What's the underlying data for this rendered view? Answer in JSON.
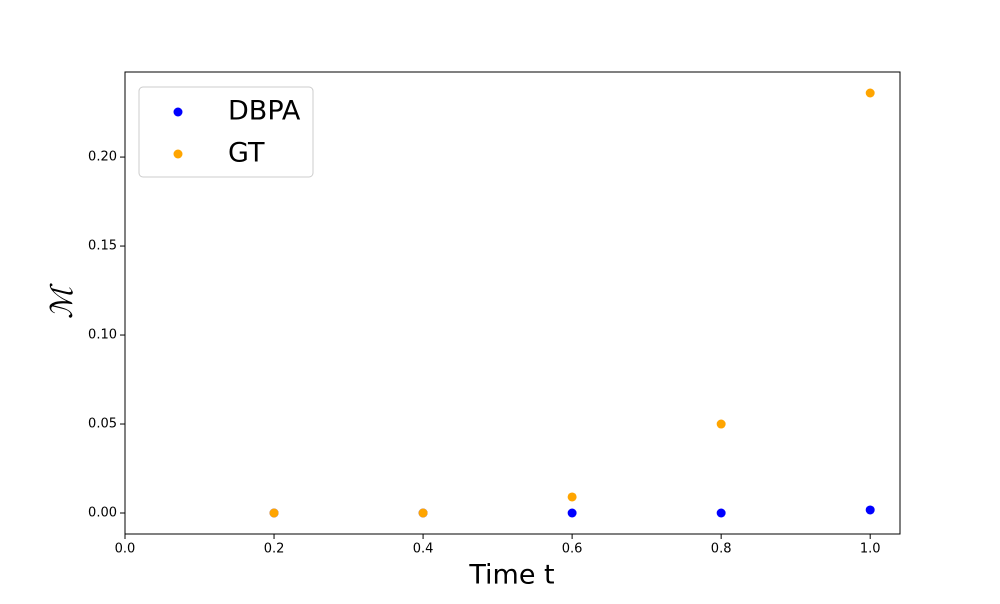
{
  "chart_data": {
    "type": "scatter",
    "x_label": "Time t",
    "y_label": "ℳ",
    "x": [
      0.2,
      0.4,
      0.6,
      0.8,
      1.0
    ],
    "series": [
      {
        "name": "DBPA",
        "color": "#0000ff",
        "values": [
          0,
          0,
          0,
          0,
          0.0017
        ]
      },
      {
        "name": "GT",
        "color": "#ffa500",
        "values": [
          0,
          0,
          0.009,
          0.05,
          0.236
        ]
      }
    ],
    "xlim": [
      0,
      1.04
    ],
    "ylim": [
      -0.0118,
      0.2478
    ],
    "xticks": [
      {
        "value": 0,
        "label": "0.0"
      },
      0.2,
      0.4,
      0.6,
      0.8,
      {
        "value": 1.0,
        "label": "1.0"
      }
    ],
    "yticks": [
      {
        "value": 0,
        "label": "0.00"
      },
      0.05,
      {
        "value": 0.1,
        "label": "0.10"
      },
      0.15,
      {
        "value": 0.2,
        "label": "0.20"
      }
    ],
    "legend": "upper left",
    "grid": false
  }
}
